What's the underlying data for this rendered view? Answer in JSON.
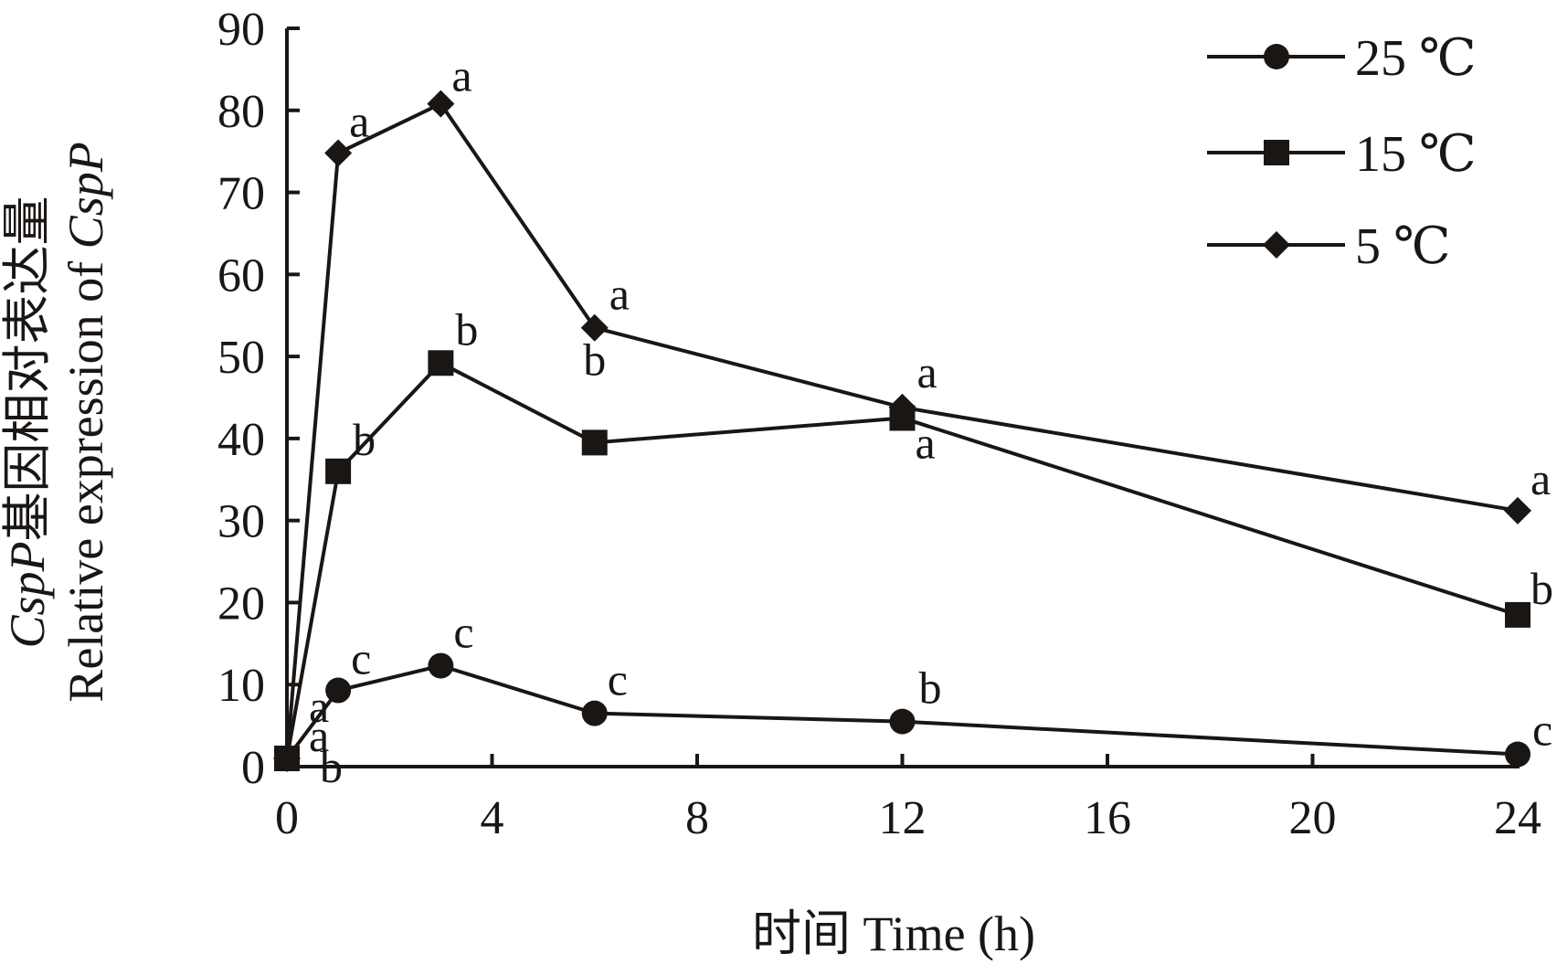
{
  "chart_data": {
    "type": "line",
    "title": "",
    "xlabel": "时间 Time (h)",
    "ylabel": {
      "italic_gene": "CspP",
      "line1_rest": "基因相对表达量",
      "line2_prefix": "Relative expression of ",
      "line2_gene": "CspP"
    },
    "xlim": [
      0,
      24
    ],
    "ylim": [
      0,
      90
    ],
    "xticks": [
      0,
      4,
      8,
      12,
      16,
      20,
      24
    ],
    "yticks": [
      0,
      10,
      20,
      30,
      40,
      50,
      60,
      70,
      80,
      90
    ],
    "x": [
      0,
      1,
      3,
      6,
      12,
      24
    ],
    "legend_position": "top-right",
    "series": [
      {
        "name": "25 ℃",
        "marker": "circle",
        "values": [
          1.0,
          9.3,
          12.3,
          6.5,
          5.5,
          1.5
        ],
        "significance": [
          "",
          "c",
          "c",
          "c",
          "b",
          "c"
        ]
      },
      {
        "name": "15 ℃",
        "marker": "square",
        "values": [
          1.0,
          36.0,
          49.2,
          39.5,
          42.5,
          18.5
        ],
        "significance": [
          "",
          "b",
          "b",
          "b",
          "a",
          "b"
        ]
      },
      {
        "name": "5 ℃",
        "marker": "diamond",
        "values": [
          1.0,
          74.8,
          80.8,
          53.5,
          43.8,
          31.2
        ],
        "significance": [
          "",
          "a",
          "a",
          "a",
          "a",
          "a"
        ]
      }
    ],
    "origin_labels": [
      "a",
      "a",
      "b"
    ]
  },
  "colors": {
    "ink": "#1a1614",
    "background": "#ffffff"
  }
}
